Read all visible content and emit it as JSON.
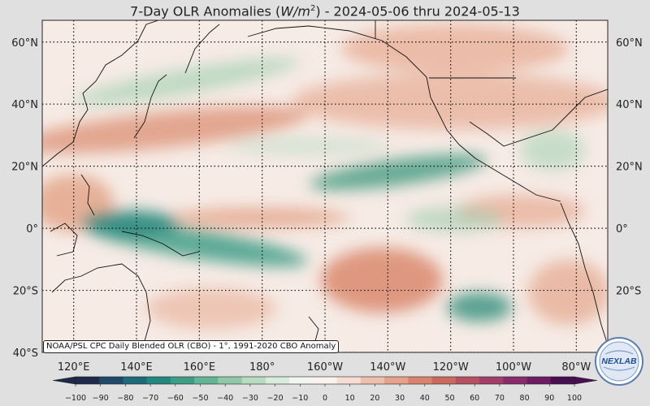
{
  "title": {
    "prefix": "7-Day OLR Anomalies (",
    "unit_base": "W/m",
    "unit_exp": "2",
    "suffix": ") - 2024-05-06 thru 2024-05-13"
  },
  "map": {
    "projection": "equirectangular",
    "lon_range": [
      110,
      290
    ],
    "lat_range": [
      -40,
      67
    ],
    "grid": true,
    "lat_labels_left": [
      "60°N",
      "40°N",
      "20°N",
      "0°",
      "20°S",
      "40°S"
    ],
    "lat_labels_right": [
      "60°N",
      "40°N",
      "20°N",
      "0°",
      "20°S"
    ],
    "lat_values_left": [
      60,
      40,
      20,
      0,
      -20,
      -40
    ],
    "lat_values_right": [
      60,
      40,
      20,
      0,
      -20
    ],
    "lon_labels": [
      "120°E",
      "140°E",
      "160°E",
      "180°",
      "160°W",
      "140°W",
      "120°W",
      "100°W",
      "80°W"
    ],
    "lon_values": [
      120,
      140,
      160,
      180,
      200,
      220,
      240,
      260,
      280
    ]
  },
  "colorbar": {
    "ticks": [
      "−100",
      "−90",
      "−80",
      "−70",
      "−60",
      "−50",
      "−40",
      "−30",
      "−20",
      "−10",
      "0",
      "10",
      "20",
      "30",
      "40",
      "50",
      "60",
      "70",
      "80",
      "90",
      "100"
    ],
    "tick_values": [
      -100,
      -90,
      -80,
      -70,
      -60,
      -50,
      -40,
      -30,
      -20,
      -10,
      0,
      10,
      20,
      30,
      40,
      50,
      60,
      70,
      80,
      90,
      100
    ],
    "colors": [
      "#1e2a4a",
      "#1f4a6b",
      "#1d6b7a",
      "#22877f",
      "#3d9e88",
      "#66b496",
      "#90c9a8",
      "#b7dcc0",
      "#d9ecdb",
      "#f2f5f0",
      "#faf2ee",
      "#f6dcd2",
      "#efc0ad",
      "#e6a28a",
      "#d9836c",
      "#c96a5c",
      "#b55262",
      "#a23e6a",
      "#8a2b6c",
      "#6e1c66",
      "#4a0f52"
    ]
  },
  "source": "NOAA/PSL CPC Daily Blended OLR (CBO) - 1°, 1991-2020 CBO Anomaly",
  "logo": {
    "text": "NEXLAB"
  }
}
